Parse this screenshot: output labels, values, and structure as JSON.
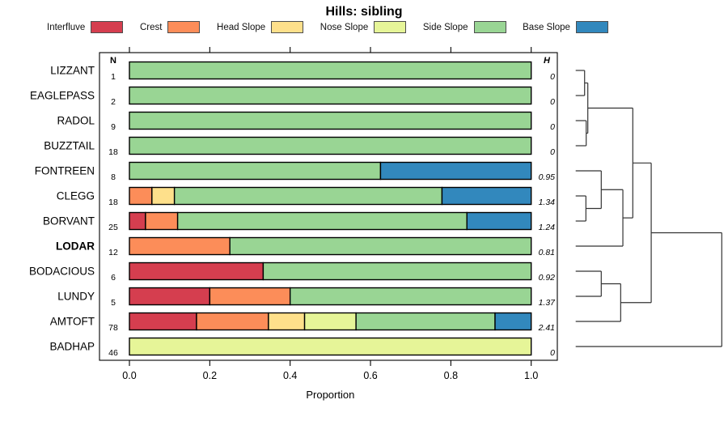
{
  "title": "Hills: sibling",
  "chart_data": {
    "type": "bar",
    "orientation": "horizontal-stacked",
    "title": "Hills: sibling",
    "xlabel": "Proportion",
    "xlim": [
      0,
      1
    ],
    "x_tick_labels": [
      "0.0",
      "0.2",
      "0.4",
      "0.6",
      "0.8",
      "1.0"
    ],
    "x_tick_values": [
      0.0,
      0.2,
      0.4,
      0.6,
      0.8,
      1.0
    ],
    "grid": false,
    "legend_position": "top",
    "columns": {
      "n_header": "N",
      "h_header": "H"
    },
    "legend": [
      {
        "label": "Interfluve",
        "color": "#d53e4f"
      },
      {
        "label": "Crest",
        "color": "#fc8d59"
      },
      {
        "label": "Head Slope",
        "color": "#fee08b"
      },
      {
        "label": "Nose Slope",
        "color": "#e6f598"
      },
      {
        "label": "Side Slope",
        "color": "#99d594"
      },
      {
        "label": "Base Slope",
        "color": "#3288bd"
      }
    ],
    "rows": [
      {
        "label": "LIZZANT",
        "n": 1,
        "h": "0",
        "bold": false,
        "proportions": [
          0,
          0,
          0,
          0,
          1,
          0
        ]
      },
      {
        "label": "EAGLEPASS",
        "n": 2,
        "h": "0",
        "bold": false,
        "proportions": [
          0,
          0,
          0,
          0,
          1,
          0
        ]
      },
      {
        "label": "RADOL",
        "n": 9,
        "h": "0",
        "bold": false,
        "proportions": [
          0,
          0,
          0,
          0,
          1,
          0
        ]
      },
      {
        "label": "BUZZTAIL",
        "n": 18,
        "h": "0",
        "bold": false,
        "proportions": [
          0,
          0,
          0,
          0,
          1,
          0
        ]
      },
      {
        "label": "FONTREEN",
        "n": 8,
        "h": "0.95",
        "bold": false,
        "proportions": [
          0,
          0,
          0,
          0,
          0.625,
          0.375
        ]
      },
      {
        "label": "CLEGG",
        "n": 18,
        "h": "1.34",
        "bold": false,
        "proportions": [
          0,
          0.056,
          0.056,
          0,
          0.666,
          0.222
        ]
      },
      {
        "label": "BORVANT",
        "n": 25,
        "h": "1.24",
        "bold": false,
        "proportions": [
          0.04,
          0.08,
          0,
          0,
          0.72,
          0.16
        ]
      },
      {
        "label": "LODAR",
        "n": 12,
        "h": "0.81",
        "bold": true,
        "proportions": [
          0,
          0.25,
          0,
          0,
          0.75,
          0
        ]
      },
      {
        "label": "BODACIOUS",
        "n": 6,
        "h": "0.92",
        "bold": false,
        "proportions": [
          0.333,
          0,
          0,
          0,
          0.667,
          0
        ]
      },
      {
        "label": "LUNDY",
        "n": 5,
        "h": "1.37",
        "bold": false,
        "proportions": [
          0.2,
          0.2,
          0,
          0,
          0.6,
          0
        ]
      },
      {
        "label": "AMTOFT",
        "n": 78,
        "h": "2.41",
        "bold": false,
        "proportions": [
          0.167,
          0.179,
          0.09,
          0.128,
          0.346,
          0.09
        ]
      },
      {
        "label": "BADHAP",
        "n": 46,
        "h": "0",
        "bold": false,
        "proportions": [
          0,
          0,
          0,
          1,
          0,
          0
        ]
      }
    ],
    "dendrogram": {
      "h": 1.0,
      "children": [
        {
          "h": 0.517,
          "children": [
            {
              "h": 0.391,
              "children": [
                {
                  "h": 0.083,
                  "children": [
                    {
                      "h": 0.061,
                      "children": [
                        {
                          "leaf": "LIZZANT"
                        },
                        {
                          "leaf": "EAGLEPASS"
                        }
                      ]
                    },
                    {
                      "h": 0.072,
                      "children": [
                        {
                          "leaf": "RADOL"
                        },
                        {
                          "leaf": "BUZZTAIL"
                        }
                      ]
                    }
                  ]
                },
                {
                  "h": 0.323,
                  "children": [
                    {
                      "h": 0.175,
                      "children": [
                        {
                          "leaf": "FONTREEN"
                        },
                        {
                          "h": 0.07,
                          "children": [
                            {
                              "leaf": "CLEGG"
                            },
                            {
                              "leaf": "BORVANT"
                            }
                          ]
                        }
                      ]
                    },
                    {
                      "leaf": "LODAR"
                    }
                  ]
                }
              ]
            },
            {
              "h": 0.308,
              "children": [
                {
                  "h": 0.175,
                  "children": [
                    {
                      "leaf": "BODACIOUS"
                    },
                    {
                      "leaf": "LUNDY"
                    }
                  ]
                },
                {
                  "leaf": "AMTOFT"
                }
              ]
            }
          ]
        },
        {
          "leaf": "BADHAP"
        }
      ]
    }
  }
}
